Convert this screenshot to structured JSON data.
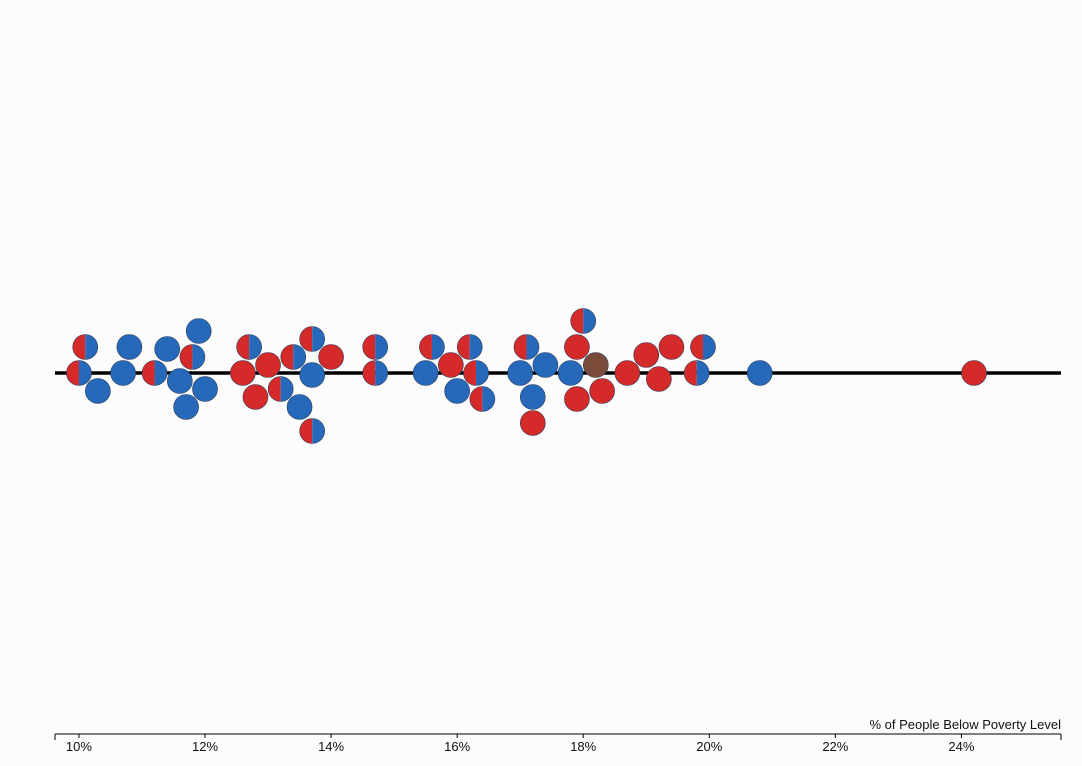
{
  "chart_data": {
    "type": "scatter",
    "title": "",
    "xlabel": "% of People Below Poverty Level",
    "ylabel": "",
    "xlim": [
      9.62,
      25.58
    ],
    "x_ticks": [
      10,
      12,
      14,
      16,
      18,
      20,
      22,
      24
    ],
    "x_tick_labels": [
      "10%",
      "12%",
      "14%",
      "16%",
      "18%",
      "20%",
      "22%",
      "24%"
    ],
    "grid": false,
    "legend": "none",
    "colors": {
      "red": "#d42a2a",
      "blue": "#2669ba",
      "brown": "#7a4a3a",
      "outline": "#2a3a55",
      "baseline": "#000000",
      "background": "#fcfcfc"
    },
    "points": [
      {
        "x": 10.0,
        "color": "split"
      },
      {
        "x": 10.1,
        "color": "split"
      },
      {
        "x": 10.3,
        "color": "blue"
      },
      {
        "x": 10.7,
        "color": "blue"
      },
      {
        "x": 10.8,
        "color": "blue"
      },
      {
        "x": 11.2,
        "color": "split"
      },
      {
        "x": 11.4,
        "color": "blue"
      },
      {
        "x": 11.6,
        "color": "blue"
      },
      {
        "x": 11.7,
        "color": "blue"
      },
      {
        "x": 11.8,
        "color": "split"
      },
      {
        "x": 11.9,
        "color": "blue"
      },
      {
        "x": 12.0,
        "color": "blue"
      },
      {
        "x": 12.6,
        "color": "red"
      },
      {
        "x": 12.7,
        "color": "split"
      },
      {
        "x": 12.8,
        "color": "red"
      },
      {
        "x": 13.0,
        "color": "red"
      },
      {
        "x": 13.2,
        "color": "split"
      },
      {
        "x": 13.4,
        "color": "split"
      },
      {
        "x": 13.5,
        "color": "blue"
      },
      {
        "x": 13.7,
        "color": "blue"
      },
      {
        "x": 13.7,
        "color": "split"
      },
      {
        "x": 13.7,
        "color": "split"
      },
      {
        "x": 14.0,
        "color": "red"
      },
      {
        "x": 14.7,
        "color": "split"
      },
      {
        "x": 14.7,
        "color": "split"
      },
      {
        "x": 15.5,
        "color": "blue"
      },
      {
        "x": 15.6,
        "color": "split"
      },
      {
        "x": 15.9,
        "color": "red"
      },
      {
        "x": 16.0,
        "color": "blue"
      },
      {
        "x": 16.2,
        "color": "split"
      },
      {
        "x": 16.3,
        "color": "split"
      },
      {
        "x": 16.4,
        "color": "split"
      },
      {
        "x": 17.0,
        "color": "blue"
      },
      {
        "x": 17.1,
        "color": "split"
      },
      {
        "x": 17.2,
        "color": "blue"
      },
      {
        "x": 17.2,
        "color": "red"
      },
      {
        "x": 17.4,
        "color": "blue"
      },
      {
        "x": 17.8,
        "color": "blue"
      },
      {
        "x": 17.9,
        "color": "red"
      },
      {
        "x": 17.9,
        "color": "red"
      },
      {
        "x": 18.0,
        "color": "split"
      },
      {
        "x": 18.2,
        "color": "brown"
      },
      {
        "x": 18.3,
        "color": "red"
      },
      {
        "x": 18.7,
        "color": "red"
      },
      {
        "x": 19.0,
        "color": "red"
      },
      {
        "x": 19.2,
        "color": "red"
      },
      {
        "x": 19.4,
        "color": "red"
      },
      {
        "x": 19.8,
        "color": "split"
      },
      {
        "x": 19.9,
        "color": "split"
      },
      {
        "x": 20.8,
        "color": "blue"
      },
      {
        "x": 24.2,
        "color": "red"
      }
    ]
  }
}
